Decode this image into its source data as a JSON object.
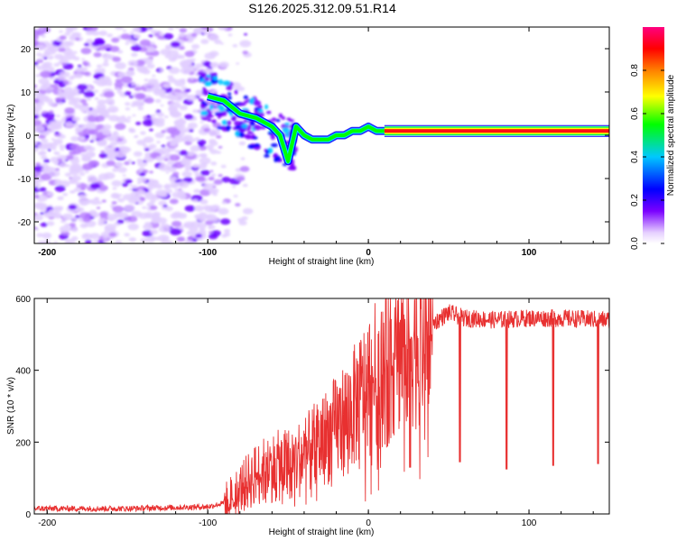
{
  "title": "S126.2025.312.09.51.R14",
  "chart_data": [
    {
      "type": "heatmap",
      "xlabel": "Height of straight line (km)",
      "ylabel": "Frequency (Hz)",
      "xlim": [
        -208,
        150
      ],
      "ylim": [
        -25,
        25
      ],
      "xticks": [
        -200,
        -100,
        0,
        100
      ],
      "yticks": [
        -20,
        -10,
        0,
        10,
        20
      ],
      "signal_trace": {
        "x": [
          -100,
          -90,
          -80,
          -70,
          -60,
          -55,
          -50,
          -45,
          -40,
          -35,
          -30,
          -25,
          -20,
          -15,
          -10,
          -5,
          0,
          5,
          10,
          150
        ],
        "y": [
          9,
          8,
          5,
          4,
          2,
          0,
          -6,
          2,
          0,
          -1,
          -1,
          -1,
          0,
          0,
          1,
          1,
          2,
          1,
          1,
          1
        ]
      },
      "noise_region_x": [
        -208,
        -95
      ],
      "colorbar": {
        "label": "Normalized spectral amplitude",
        "range": [
          0.0,
          1.0
        ],
        "ticks": [
          "0.0",
          "0.2",
          "0.4",
          "0.6",
          "0.8"
        ]
      }
    },
    {
      "type": "line",
      "xlabel": "Height of straight line (km)",
      "ylabel": "SNR (10 * v/v)",
      "xlim": [
        -208,
        150
      ],
      "ylim": [
        0,
        600
      ],
      "xticks": [
        -200,
        -100,
        0,
        100
      ],
      "yticks": [
        0,
        200,
        400,
        600
      ],
      "series": [
        {
          "name": "SNR",
          "color": "#e83030",
          "x": [
            -208,
            -150,
            -100,
            -90,
            -80,
            -70,
            -60,
            -50,
            -40,
            -30,
            -20,
            -10,
            0,
            10,
            20,
            30,
            40,
            50,
            60,
            80,
            100,
            120,
            150
          ],
          "y": [
            15,
            15,
            20,
            30,
            70,
            110,
            130,
            140,
            160,
            200,
            240,
            290,
            360,
            410,
            470,
            500,
            530,
            560,
            545,
            540,
            545,
            545,
            540
          ],
          "dips": [
            {
              "x": 26,
              "y": 130
            },
            {
              "x": 57,
              "y": 145
            },
            {
              "x": 86,
              "y": 125
            },
            {
              "x": 115,
              "y": 135
            },
            {
              "x": 143,
              "y": 140
            }
          ]
        }
      ]
    }
  ]
}
